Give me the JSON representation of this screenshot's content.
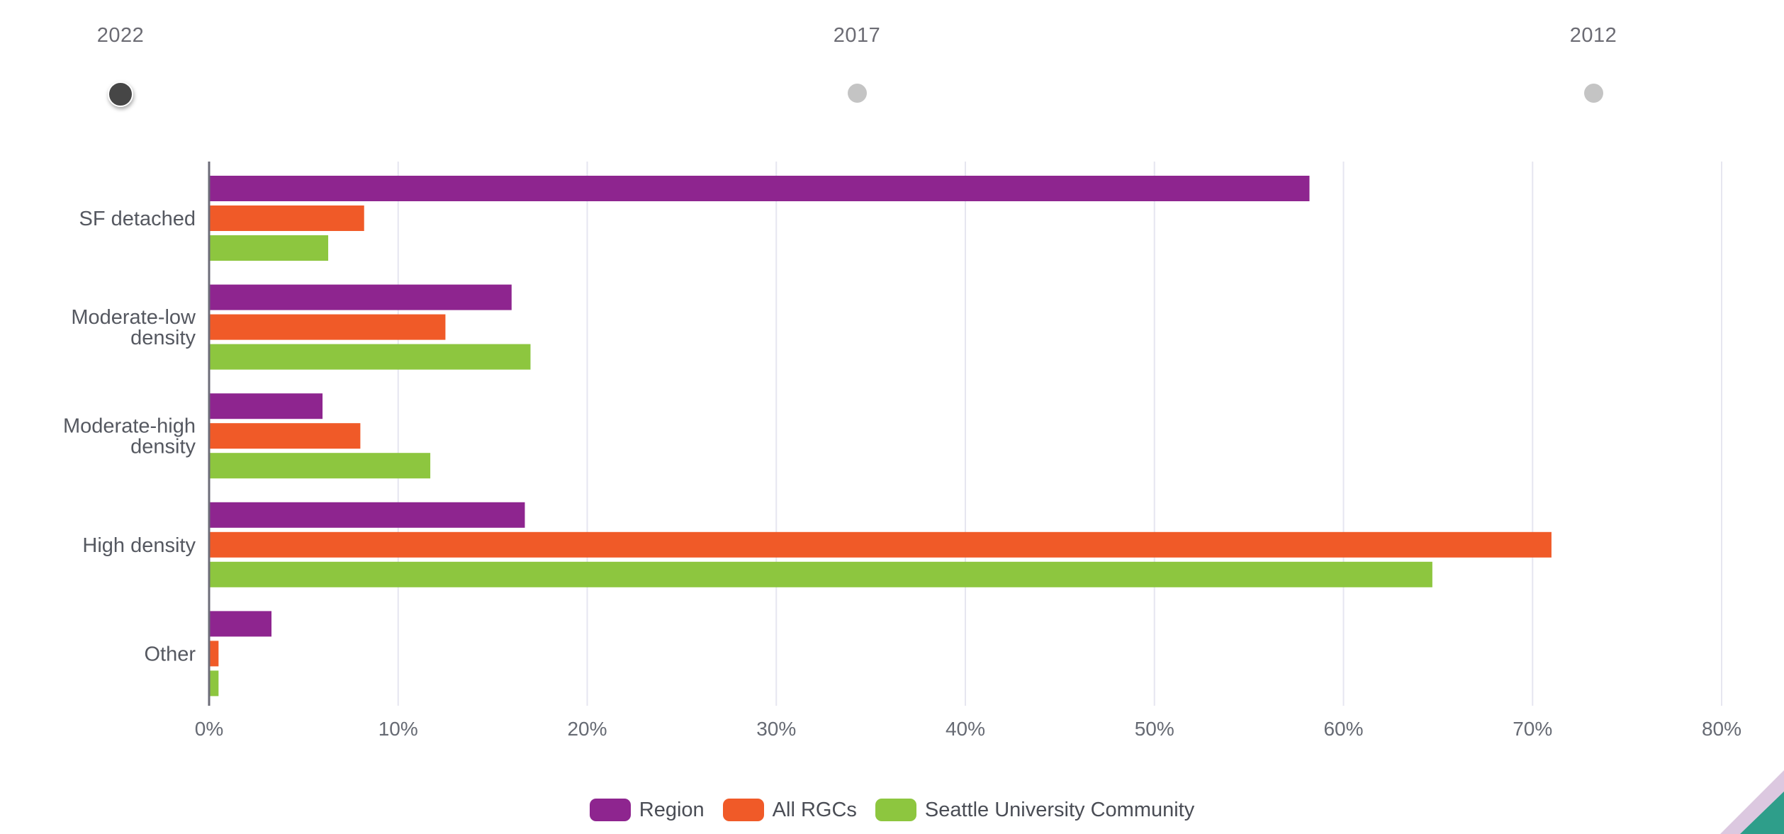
{
  "timeline": {
    "years": [
      "2022",
      "2017",
      "2012"
    ],
    "active_index": 0
  },
  "chart_data": {
    "type": "bar",
    "orientation": "horizontal",
    "categories": [
      [
        "SF detached"
      ],
      [
        "Moderate-low",
        "density"
      ],
      [
        "Moderate-high",
        "density"
      ],
      [
        "High density"
      ],
      [
        "Other"
      ]
    ],
    "series": [
      {
        "name": "Region",
        "color": "#8e258f",
        "values": [
          58.2,
          16.0,
          6.0,
          16.7,
          3.3
        ]
      },
      {
        "name": "All RGCs",
        "color": "#f05a28",
        "values": [
          8.2,
          12.5,
          8.0,
          71.0,
          0.5
        ]
      },
      {
        "name": "Seattle University Community",
        "color": "#8dc63f",
        "values": [
          6.3,
          17.0,
          11.7,
          64.7,
          0.5
        ]
      }
    ],
    "x_ticks": [
      "0%",
      "10%",
      "20%",
      "30%",
      "40%",
      "50%",
      "60%",
      "70%",
      "80%"
    ],
    "xlim": [
      0,
      80
    ],
    "grid": true,
    "legend_position": "bottom-center"
  },
  "colors": {
    "grid": "#e6e6f0",
    "axis": "#6c6c78",
    "corner_lilac": "#dcc8e0",
    "corner_teal": "#2e9e8a"
  }
}
